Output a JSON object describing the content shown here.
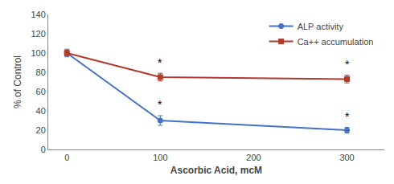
{
  "chart_data": {
    "type": "line",
    "x": [
      0,
      100,
      300
    ],
    "series": [
      {
        "name": "ALP activity",
        "color": "#4472C4",
        "marker": "circle",
        "values": [
          100,
          30,
          20
        ],
        "errors": [
          4,
          5,
          3
        ]
      },
      {
        "name": "Ca++ accumulation",
        "color": "#B03A2E",
        "marker": "square",
        "values": [
          100,
          75,
          73
        ],
        "errors": [
          3,
          4,
          4
        ]
      }
    ],
    "annotations": [
      {
        "text": "*",
        "x": 100,
        "y": 38
      },
      {
        "text": "*",
        "x": 300,
        "y": 26
      },
      {
        "text": "*",
        "x": 100,
        "y": 82
      },
      {
        "text": "*",
        "x": 300,
        "y": 80
      }
    ],
    "xlabel": "Ascorbic Acid, mcM",
    "ylabel": "% of Control",
    "xlim": [
      -20,
      340
    ],
    "ylim": [
      0,
      140
    ],
    "xticks": [
      0,
      100,
      200,
      300
    ],
    "yticks": [
      0,
      20,
      40,
      60,
      80,
      100,
      120,
      140
    ],
    "grid": false,
    "legend": "upper right"
  }
}
